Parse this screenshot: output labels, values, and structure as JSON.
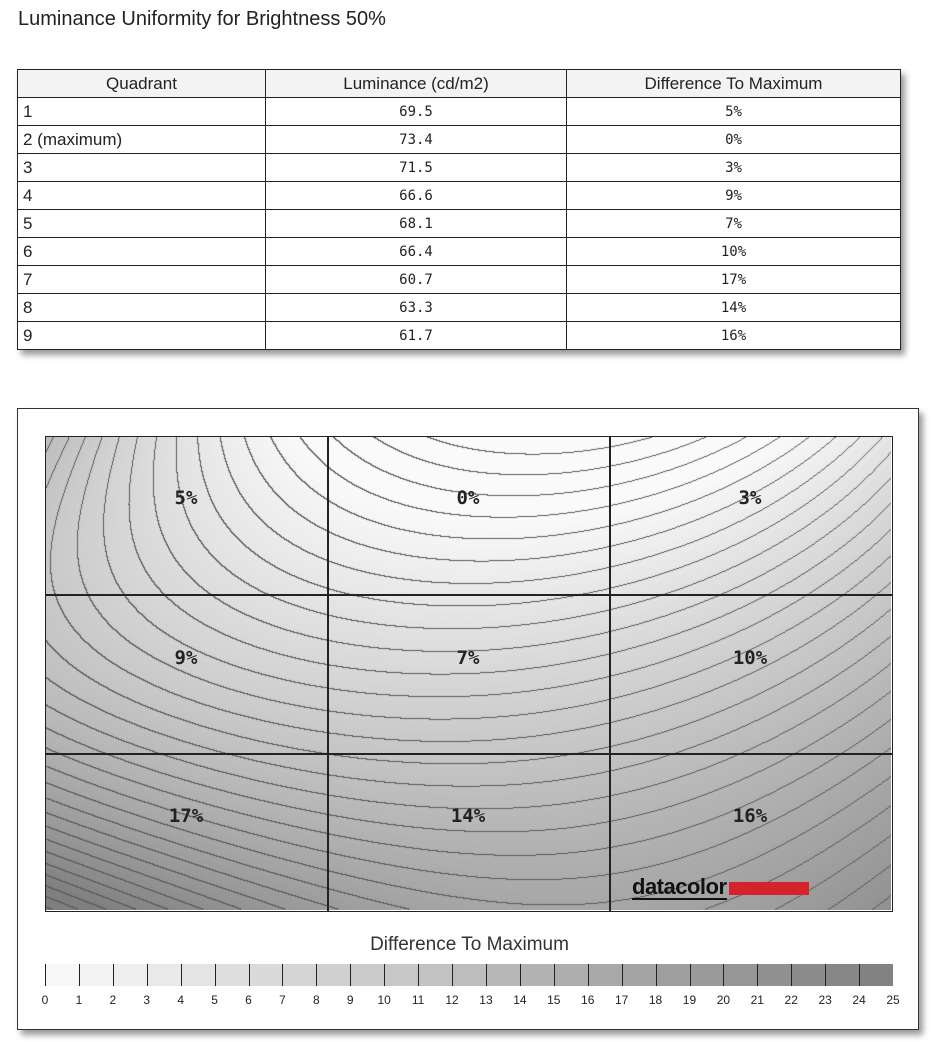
{
  "title": "Luminance Uniformity for Brightness 50%",
  "table": {
    "headers": [
      "Quadrant",
      "Luminance (cd/m2)",
      "Difference To Maximum"
    ],
    "rows": [
      [
        "1",
        "69.5",
        "5%"
      ],
      [
        "2 (maximum)",
        "73.4",
        "0%"
      ],
      [
        "3",
        "71.5",
        "3%"
      ],
      [
        "4",
        "66.6",
        "9%"
      ],
      [
        "5",
        "68.1",
        "7%"
      ],
      [
        "6",
        "66.4",
        "10%"
      ],
      [
        "7",
        "60.7",
        "17%"
      ],
      [
        "8",
        "63.3",
        "14%"
      ],
      [
        "9",
        "61.7",
        "16%"
      ]
    ]
  },
  "chart_data": {
    "type": "heatmap",
    "grid": [
      [
        5,
        0,
        3
      ],
      [
        9,
        7,
        10
      ],
      [
        17,
        14,
        16
      ]
    ],
    "cell_labels": [
      [
        "5%",
        "0%",
        "3%"
      ],
      [
        "9%",
        "7%",
        "10%"
      ],
      [
        "17%",
        "14%",
        "16%"
      ]
    ],
    "contours": true,
    "legend": {
      "title": "Difference To Maximum",
      "min": 0,
      "max": 25,
      "ticks": [
        "0",
        "1",
        "2",
        "3",
        "4",
        "5",
        "6",
        "7",
        "8",
        "9",
        "10",
        "11",
        "12",
        "13",
        "14",
        "15",
        "16",
        "17",
        "18",
        "19",
        "20",
        "21",
        "22",
        "23",
        "24",
        "25"
      ],
      "color_low": "#fafafa",
      "color_high": "#808080"
    }
  },
  "logo": {
    "text": "datacolor",
    "color": "#d4232b"
  }
}
